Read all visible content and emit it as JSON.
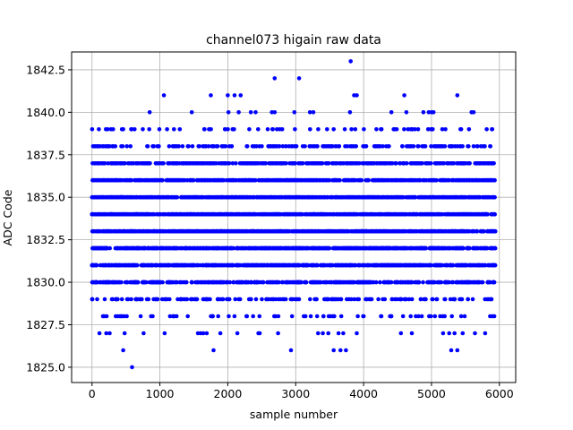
{
  "chart_data": {
    "type": "scatter",
    "title": "channel073 higain raw data",
    "xlabel": "sample number",
    "ylabel": "ADC Code",
    "xlim": [
      -300,
      6240
    ],
    "ylim": [
      1824.1,
      1843.55
    ],
    "xticks": [
      0,
      1000,
      2000,
      3000,
      4000,
      5000,
      6000
    ],
    "yticks": [
      1825.0,
      1827.5,
      1830.0,
      1832.5,
      1835.0,
      1837.5,
      1840.0,
      1842.5
    ],
    "xtick_labels": [
      "0",
      "1000",
      "2000",
      "3000",
      "4000",
      "5000",
      "6000"
    ],
    "ytick_labels": [
      "1825.0",
      "1827.5",
      "1830.0",
      "1832.5",
      "1835.0",
      "1837.5",
      "1840.0",
      "1842.5"
    ],
    "grid": true,
    "marker_color": "#0000ff",
    "x_range_samples": [
      0,
      5940
    ],
    "series": [
      {
        "name": "",
        "levels": [
          {
            "y": 1826,
            "x": [
              460,
              1790,
              2930,
              3560,
              3660,
              3740,
              5290,
              5380
            ]
          },
          {
            "y": 1825,
            "x": [
              590
            ]
          },
          {
            "y": 1827,
            "x": [
              110,
              210,
              260,
              480,
              760,
              1070,
              1560,
              1600,
              1640,
              1690,
              1890,
              2140,
              2450,
              2470,
              2740,
              3330,
              3400,
              3480,
              3630,
              3700,
              3900,
              4550,
              4710,
              5170,
              5260,
              5340,
              5460,
              5640,
              5790
            ]
          },
          {
            "y": 1840,
            "x": [
              850,
              1470,
              2010,
              2160,
              2340,
              2410,
              2650,
              2690,
              2980,
              3210,
              3260,
              3800,
              4410,
              4630,
              4880,
              4960,
              5000,
              5030,
              5590,
              5620
            ]
          },
          {
            "y": 1841,
            "x": [
              1060,
              1750,
              2000,
              2100,
              2190,
              3860,
              3900,
              4600,
              5380
            ]
          },
          {
            "y": 1842,
            "x": [
              2690,
              3050
            ]
          },
          {
            "y": 1843,
            "x": [
              3810
            ]
          }
        ]
      }
    ]
  }
}
